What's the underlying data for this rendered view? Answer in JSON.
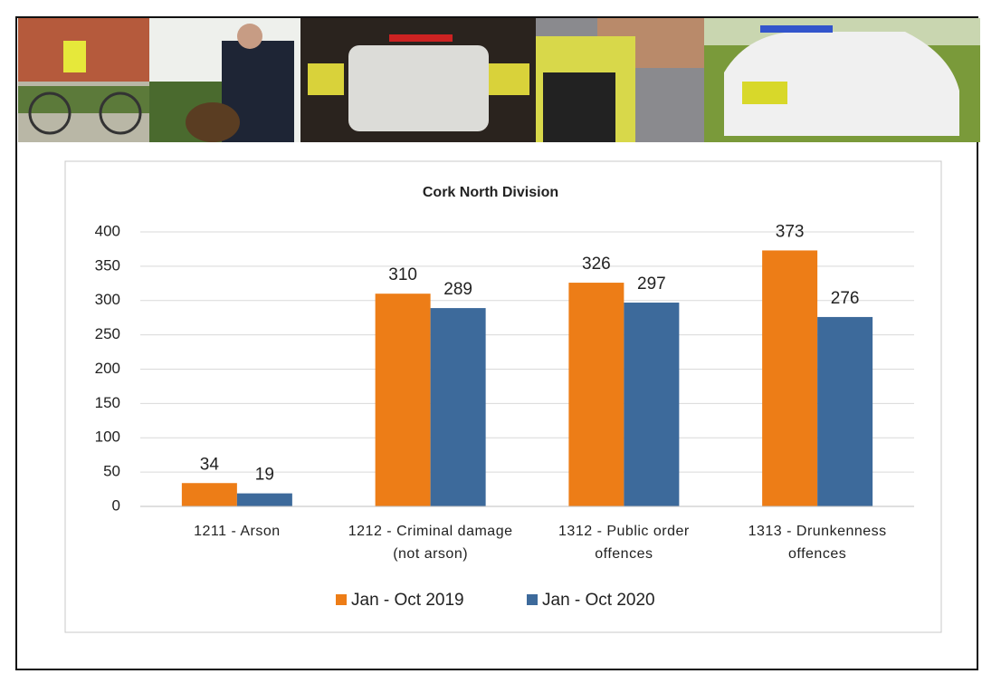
{
  "chart_data": {
    "type": "bar",
    "title": "Cork North Division",
    "categories": [
      "1211 - Arson",
      "1212 - Criminal damage (not arson)",
      "1312 - Public order offences",
      "1313 - Drunkenness offences"
    ],
    "series": [
      {
        "name": "Jan - Oct 2019",
        "color": "#ed7d17",
        "values": [
          34,
          310,
          326,
          373
        ]
      },
      {
        "name": "Jan - Oct 2020",
        "color": "#3d6a9b",
        "values": [
          19,
          289,
          297,
          276
        ]
      }
    ],
    "ylim": [
      0,
      400
    ],
    "yticks": [
      0,
      50,
      100,
      150,
      200,
      250,
      300,
      350,
      400
    ],
    "grid": true,
    "legend": "bottom"
  }
}
